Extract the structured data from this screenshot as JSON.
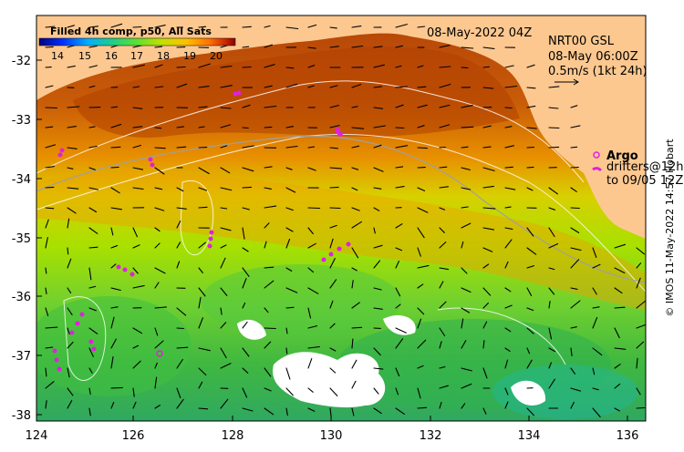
{
  "title": {
    "product": "Filled 4h comp, p50, All Sats",
    "date": "08-May-2022 04Z"
  },
  "colorbar": {
    "labels": [
      "14",
      "15",
      "16",
      "17",
      "18",
      "19",
      "20"
    ],
    "colors": [
      "#000080",
      "#0030ff",
      "#00b0ff",
      "#20d080",
      "#60e030",
      "#c0e000",
      "#ffc000",
      "#ff7000",
      "#d03000",
      "#900000"
    ]
  },
  "current_info": {
    "line1": "NRT00 GSL",
    "line2": "08-May 06:00Z",
    "line3": "0.5m/s (1kt 24h)"
  },
  "argo": {
    "label": "Argo",
    "line2": "drifters@12h",
    "line3": "to 09/05 12Z"
  },
  "credit": "© IMOS 11-May-2022 14:57 Hobart",
  "axes": {
    "x_ticks": [
      "124",
      "126",
      "128",
      "130",
      "132",
      "134",
      "136"
    ],
    "y_ticks": [
      "-32",
      "-33",
      "-34",
      "-35",
      "-36",
      "-37",
      "-38"
    ],
    "x_range": [
      124,
      136.5
    ],
    "y_range": [
      -38.1,
      -31.2
    ]
  },
  "colors": {
    "land": "#fcc890",
    "warm": "#b84808",
    "mid": "#e89000",
    "cool": "#a8e000",
    "green": "#40c040",
    "cyan": "#20b8a0",
    "argo": "#e020e0"
  }
}
